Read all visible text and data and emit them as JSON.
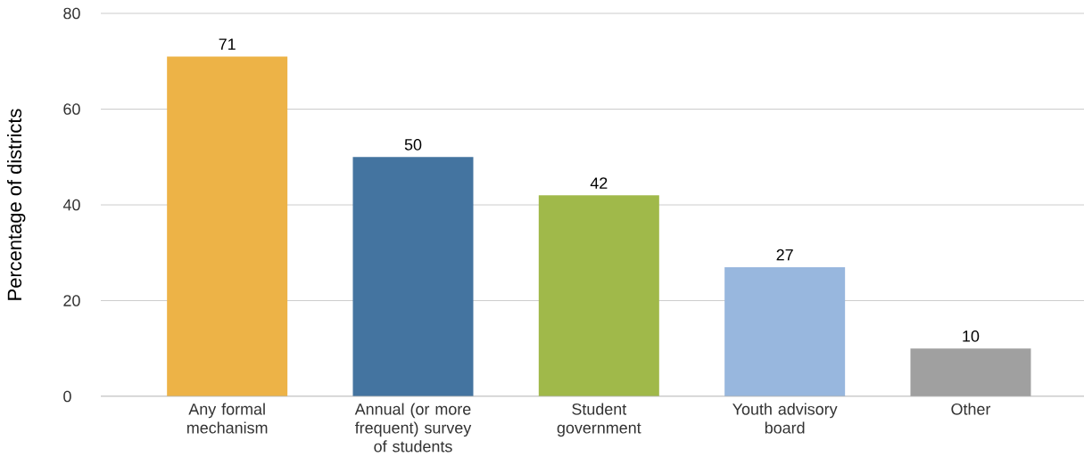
{
  "chart_data": {
    "type": "bar",
    "ylabel": "Percentage of districts",
    "categories": [
      "Any formal mechanism",
      "Annual (or more frequent) survey of students",
      "Student government",
      "Youth advisory board",
      "Other"
    ],
    "values": [
      71,
      50,
      42,
      27,
      10
    ],
    "colors": [
      "#edb347",
      "#4474a0",
      "#a0b94a",
      "#98b7de",
      "#a0a0a0"
    ],
    "ylim": [
      0,
      80
    ],
    "yticks": [
      0,
      20,
      40,
      60,
      80
    ],
    "grid": "y",
    "data_labels": true
  }
}
